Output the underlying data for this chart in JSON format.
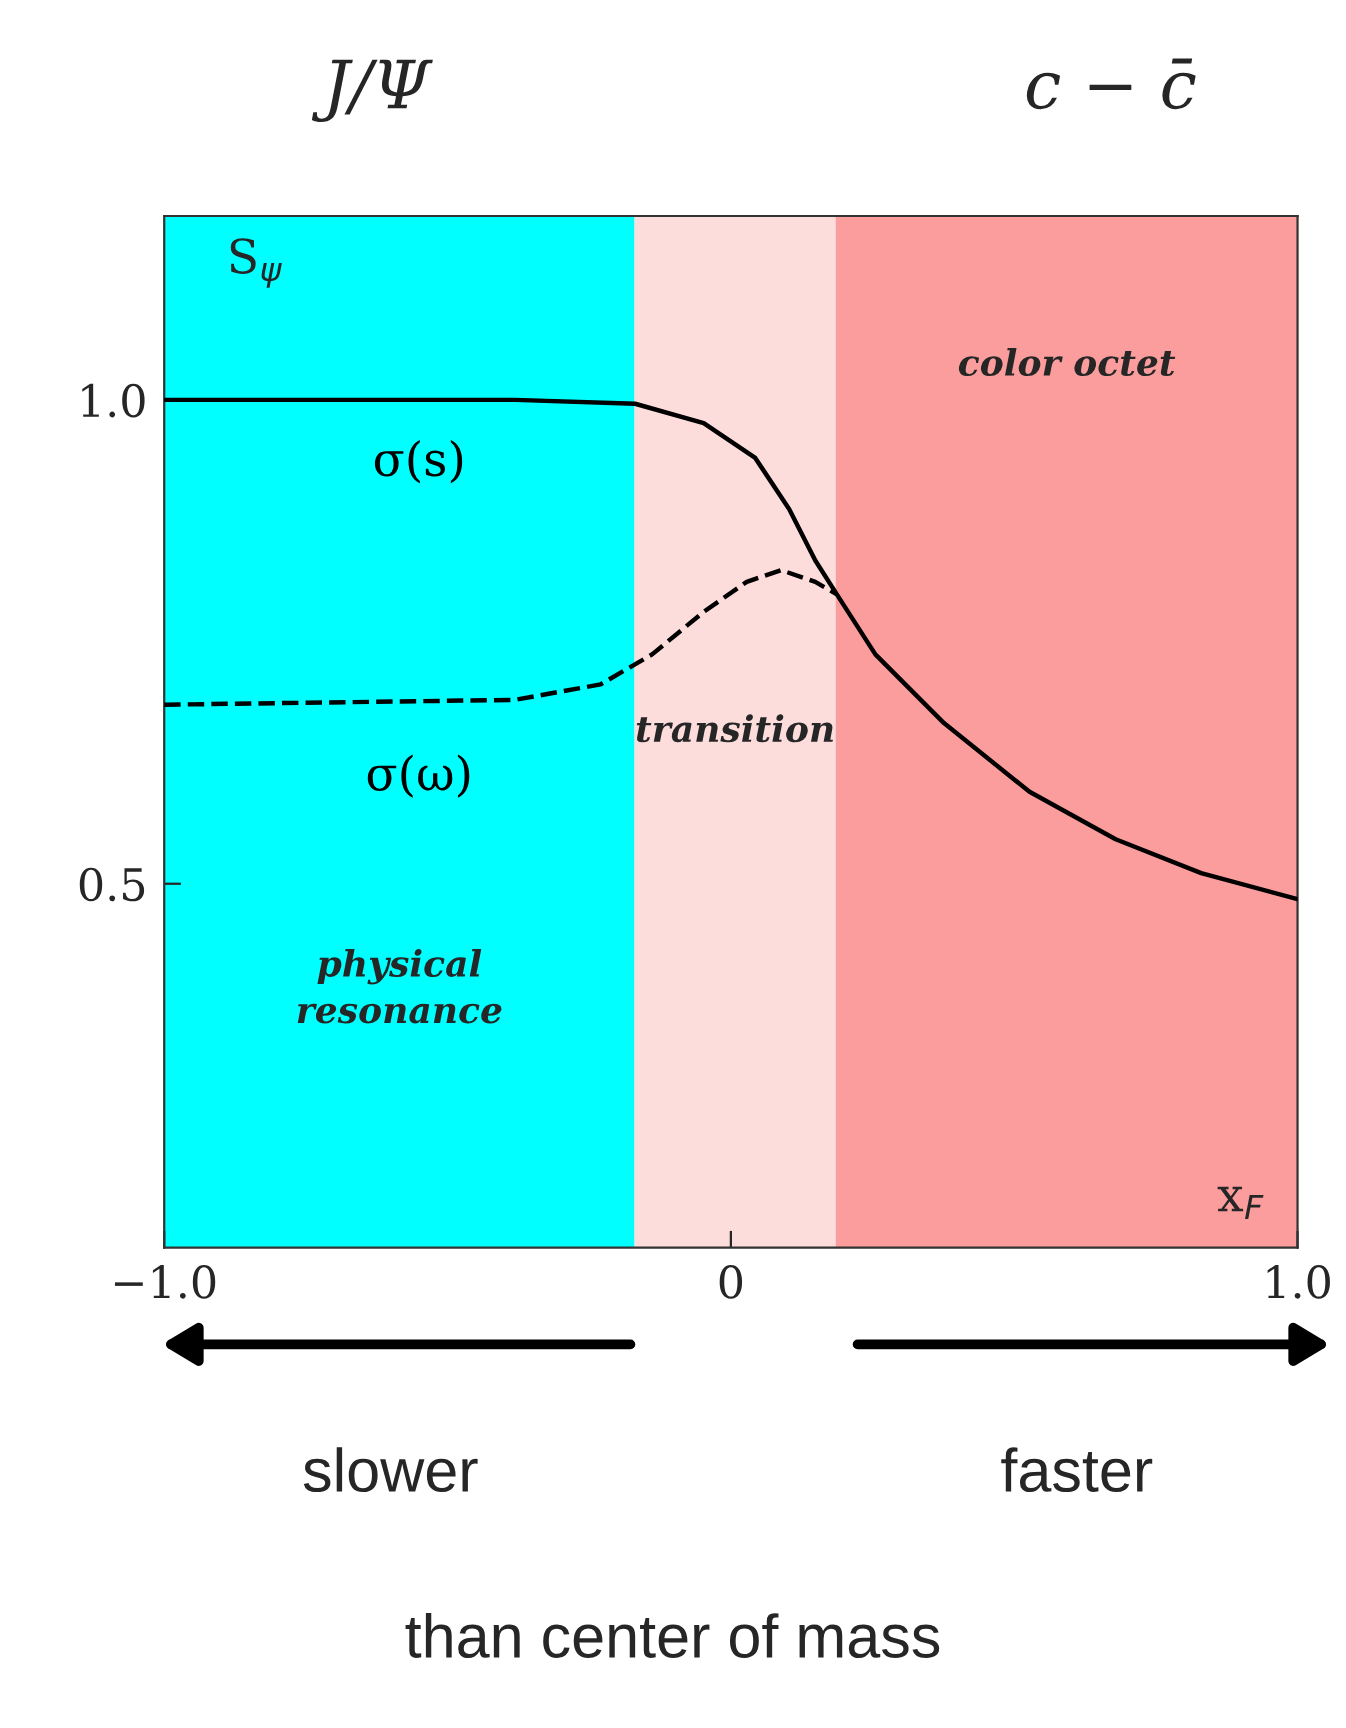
{
  "chart_data": {
    "type": "line",
    "xlabel": "x$_{F}$",
    "ylabel": "S$_{ψ}$",
    "xlim": [
      -1.0,
      1.0
    ],
    "ylim": [
      0.124,
      1.19
    ],
    "xticks": [
      {
        "value": -1.0,
        "label": "−1.0"
      },
      0,
      {
        "value": 1.0,
        "label": "1.0"
      }
    ],
    "yticks": [
      0.5,
      {
        "value": 1.0,
        "label": "1.0"
      }
    ],
    "grid": false,
    "legend": false,
    "series": [
      {
        "name": "σ(s)",
        "color": "#000000",
        "line_style": "solid",
        "x": [
          -1.0,
          -0.381,
          -0.169,
          -0.048,
          0.043,
          0.103,
          0.149,
          0.187,
          0.255,
          0.376,
          0.527,
          0.679,
          0.83,
          1.0
        ],
        "values": [
          1.0,
          1.0,
          0.996,
          0.976,
          0.94,
          0.887,
          0.834,
          0.799,
          0.737,
          0.666,
          0.595,
          0.546,
          0.511,
          0.484
        ]
      },
      {
        "name": "σ(ω)",
        "color": "#000000",
        "line_style": "dashed",
        "x": [
          -1.0,
          -0.381,
          -0.23,
          -0.139,
          -0.048,
          0.028,
          0.089,
          0.149,
          0.187
        ],
        "values": [
          0.685,
          0.69,
          0.706,
          0.737,
          0.781,
          0.812,
          0.824,
          0.812,
          0.799
        ]
      }
    ],
    "bands": [
      {
        "axis": "x",
        "from": -1.0,
        "to": -0.17,
        "label": "physical\nresonance",
        "color": "#00ffff"
      },
      {
        "axis": "x",
        "from": -0.17,
        "to": 0.185,
        "label": "transition",
        "color": "#fddcdc"
      },
      {
        "axis": "x",
        "from": 0.185,
        "to": 1.0,
        "label": "color octet",
        "color": "#fc9d9d"
      }
    ],
    "annotations": [
      "J/Ψ",
      "c − c̄",
      "slower",
      "faster",
      "than center of mass"
    ]
  }
}
